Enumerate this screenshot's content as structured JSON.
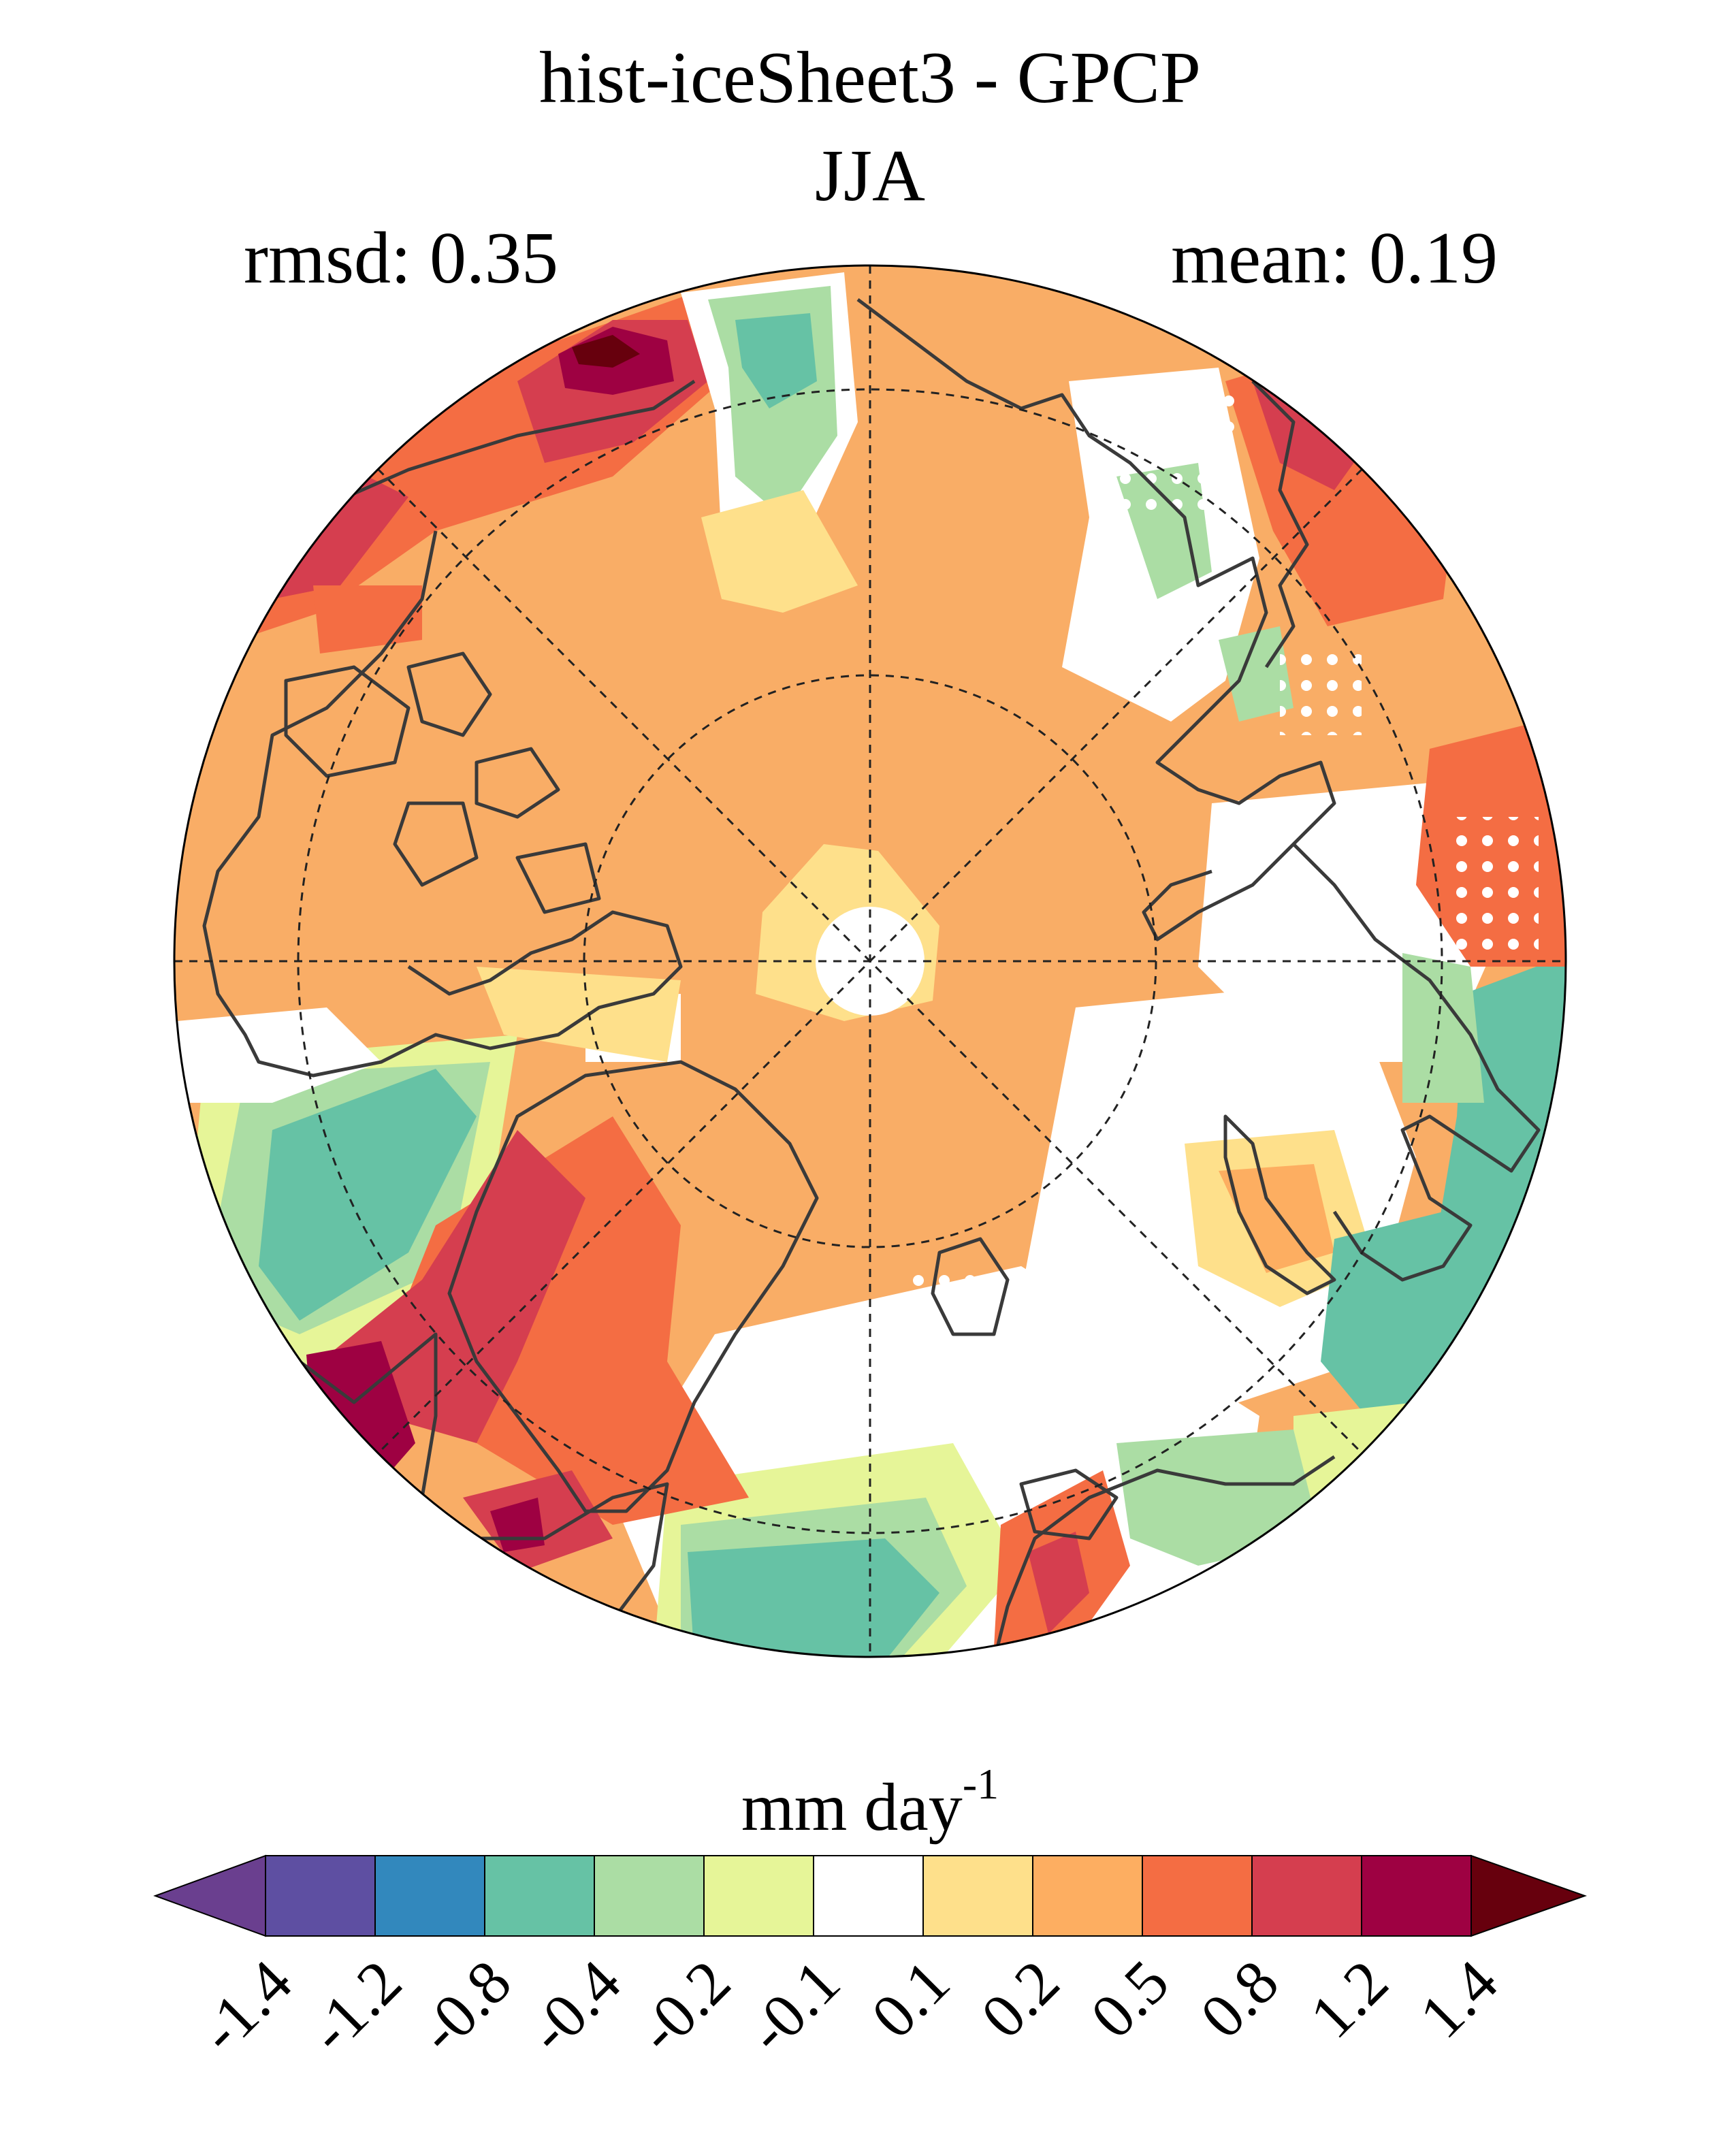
{
  "title": "hist-iceSheet3 - GPCP",
  "season": "JJA",
  "stats": {
    "rmsd": "rmsd: 0.35",
    "mean": "mean: 0.19"
  },
  "colorbar": {
    "unit_base": "mm day",
    "unit_exponent": "-1",
    "ticks": [
      "-1.4",
      "-1.2",
      "-0.8",
      "-0.4",
      "-0.2",
      "-0.1",
      "0.1",
      "0.2",
      "0.5",
      "0.8",
      "1.2",
      "1.4"
    ],
    "under_color": "#6a3f8f",
    "over_color": "#67000d",
    "colors": [
      "#5e4fa2",
      "#3288bd",
      "#66c2a5",
      "#abdda4",
      "#e6f598",
      "#ffffff",
      "#fee08b",
      "#fdae61",
      "#f46d43",
      "#d53e4f",
      "#9e0142"
    ]
  },
  "map": {
    "projection": "north-polar-stereographic",
    "background_color": "#f9ad66",
    "stippling": true
  }
}
